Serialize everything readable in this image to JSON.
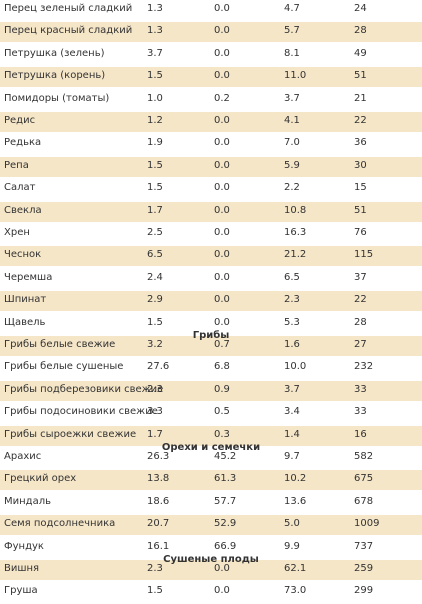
{
  "rows": [
    [
      "Перец зеленый сладкий",
      "1.3",
      "0.0",
      "4.7",
      "24"
    ],
    [
      "Перец красный сладкий",
      "1.3",
      "0.0",
      "5.7",
      "28"
    ],
    [
      "Петрушка (зелень)",
      "3.7",
      "0.0",
      "8.1",
      "49"
    ],
    [
      "Петрушка (корень)",
      "1.5",
      "0.0",
      "11.0",
      "51"
    ],
    [
      "Помидоры (томаты)",
      "1.0",
      "0.2",
      "3.7",
      "21"
    ],
    [
      "Редис",
      "1.2",
      "0.0",
      "4.1",
      "22"
    ],
    [
      "Редька",
      "1.9",
      "0.0",
      "7.0",
      "36"
    ],
    [
      "Репа",
      "1.5",
      "0.0",
      "5.9",
      "30"
    ],
    [
      "Салат",
      "1.5",
      "0.0",
      "2.2",
      "15"
    ],
    [
      "Свекла",
      "1.7",
      "0.0",
      "10.8",
      "51"
    ],
    [
      "Хрен",
      "2.5",
      "0.0",
      "16.3",
      "76"
    ],
    [
      "Чеснок",
      "6.5",
      "0.0",
      "21.2",
      "115"
    ],
    [
      "Черемша",
      "2.4",
      "0.0",
      "6.5",
      "37"
    ],
    [
      "Шпинат",
      "2.9",
      "0.0",
      "2.3",
      "22"
    ],
    [
      "Щавель",
      "1.5",
      "0.0",
      "5.3",
      "28"
    ],
    [
      "Грибы белые свежие",
      "3.2",
      "0.7",
      "1.6",
      "27"
    ],
    [
      "Грибы белые сушеные",
      "27.6",
      "6.8",
      "10.0",
      "232"
    ],
    [
      "Грибы подберезовики свежие",
      "2.3",
      "0.9",
      "3.7",
      "33"
    ],
    [
      "Грибы подосиновики свежие",
      "3.3",
      "0.5",
      "3.4",
      "33"
    ],
    [
      "Грибы сыроежки свежие",
      "1.7",
      "0.3",
      "1.4",
      "16"
    ],
    [
      "Арахис",
      "26.3",
      "45.2",
      "9.7",
      "582"
    ],
    [
      "Грецкий орех",
      "13.8",
      "61.3",
      "10.2",
      "675"
    ],
    [
      "Миндаль",
      "18.6",
      "57.7",
      "13.6",
      "678"
    ],
    [
      "Семя подсолнечника",
      "20.7",
      "52.9",
      "5.0",
      "1009"
    ],
    [
      "Фундук",
      "16.1",
      "66.9",
      "9.9",
      "737"
    ],
    [
      "Вишня",
      "2.3",
      "0.0",
      "62.1",
      "259"
    ],
    [
      "Груша",
      "1.5",
      "0.0",
      "73.0",
      "299"
    ]
  ],
  "sections": [
    {
      "title": "Грибы",
      "before_row": 15
    },
    {
      "title": "Орехи и семечки",
      "before_row": 20
    },
    {
      "title": "Сушеные плоды",
      "before_row": 25
    }
  ]
}
